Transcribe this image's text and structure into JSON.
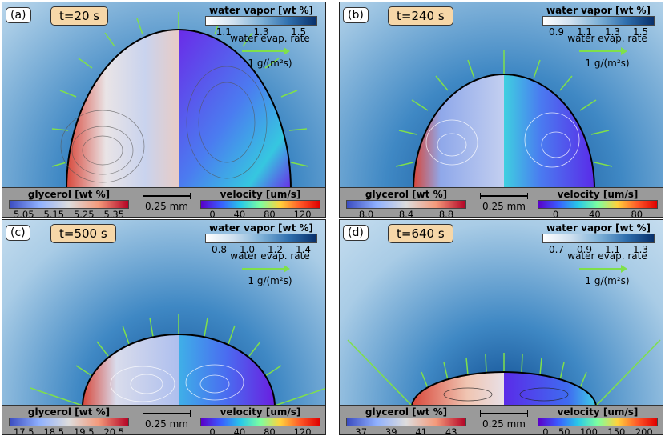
{
  "panels": [
    {
      "label": "(a)",
      "time": "t=20 s",
      "vapor": {
        "title": "water vapor [wt %]",
        "ticks": [
          "1.1",
          "1.3",
          "1.5"
        ]
      },
      "evap": {
        "line1": "water evap. rate",
        "line2": "1 g/(m²s)"
      },
      "glycerol": {
        "title": "glycerol [wt %]",
        "ticks": [
          "5.05",
          "5.15",
          "5.25",
          "5.35"
        ]
      },
      "scale": "0.25 mm",
      "velocity": {
        "title": "velocity [um/s]",
        "ticks": [
          "0",
          "40",
          "80",
          "120"
        ]
      }
    },
    {
      "label": "(b)",
      "time": "t=240 s",
      "vapor": {
        "title": "water vapor [wt %]",
        "ticks": [
          "0.9",
          "1.1",
          "1.3",
          "1.5"
        ]
      },
      "evap": {
        "line1": "water evap. rate",
        "line2": "1 g/(m²s)"
      },
      "glycerol": {
        "title": "glycerol [wt %]",
        "ticks": [
          "8.0",
          "8.4",
          "8.8"
        ]
      },
      "scale": "0.25 mm",
      "velocity": {
        "title": "velocity [um/s]",
        "ticks": [
          "0",
          "40",
          "80"
        ]
      }
    },
    {
      "label": "(c)",
      "time": "t=500 s",
      "vapor": {
        "title": "water vapor [wt %]",
        "ticks": [
          "0.8",
          "1.0",
          "1.2",
          "1.4"
        ]
      },
      "evap": {
        "line1": "water evap. rate",
        "line2": "1 g/(m²s)"
      },
      "glycerol": {
        "title": "glycerol [wt %]",
        "ticks": [
          "17.5",
          "18.5",
          "19.5",
          "20.5"
        ]
      },
      "scale": "0.25 mm",
      "velocity": {
        "title": "velocity [um/s]",
        "ticks": [
          "0",
          "40",
          "80",
          "120"
        ]
      }
    },
    {
      "label": "(d)",
      "time": "t=640 s",
      "vapor": {
        "title": "water vapor [wt %]",
        "ticks": [
          "0.7",
          "0.9",
          "1.1",
          "1.3"
        ]
      },
      "evap": {
        "line1": "water evap. rate",
        "line2": "1 g/(m²s)"
      },
      "glycerol": {
        "title": "glycerol [wt %]",
        "ticks": [
          "37",
          "39",
          "41",
          "43"
        ]
      },
      "scale": "0.25 mm",
      "velocity": {
        "title": "velocity [um/s]",
        "ticks": [
          "0",
          "50",
          "100",
          "150",
          "200"
        ]
      }
    }
  ],
  "colors": {
    "vapor_dark": "#1f5f9e",
    "vapor_light": "#eaf2f9",
    "glycerol_hot": "#e0563f",
    "velocity_low": "#5a1ee0",
    "arrow": "#7fe04a"
  }
}
